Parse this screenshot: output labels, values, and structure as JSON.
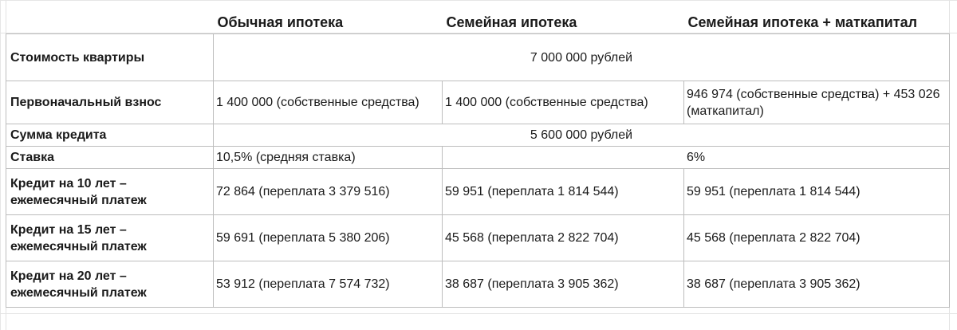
{
  "headers": {
    "col1": "Обычная ипотека",
    "col2": "Семейная ипотека",
    "col3": "Семейная ипотека + маткапитал"
  },
  "rows": {
    "price": {
      "label": "Стоимость квартиры",
      "value": "7 000 000 рублей"
    },
    "down_payment": {
      "label": "Первоначальный взнос",
      "col1": "1 400 000 (собственные средства)",
      "col2": "1 400 000 (собственные средства)",
      "col3": "946 974 (собственные средства) + 453 026 (маткапитал)"
    },
    "loan_amount": {
      "label": "Сумма кредита",
      "value": "5 600 000 рублей"
    },
    "rate": {
      "label": "Ставка",
      "col1": "10,5% (средняя ставка)",
      "col23": "6%"
    },
    "loan10": {
      "label": "Кредит на 10 лет – ежемесячный платеж",
      "col1": "72 864 (переплата 3 379 516)",
      "col2": "59 951 (переплата 1 814 544)",
      "col3": "59 951 (переплата 1 814 544)"
    },
    "loan15": {
      "label": "Кредит на 15 лет – ежемесячный платеж",
      "col1": "59 691 (переплата 5 380 206)",
      "col2": "45 568 (переплата 2 822 704)",
      "col3": "45 568 (переплата 2 822 704)"
    },
    "loan20": {
      "label": "Кредит на 20 лет – ежемесячный платеж",
      "col1": "53 912 (переплата 7 574 732)",
      "col2": "38 687 (переплата 3 905 362)",
      "col3": "38 687 (переплата 3 905 362)"
    }
  }
}
